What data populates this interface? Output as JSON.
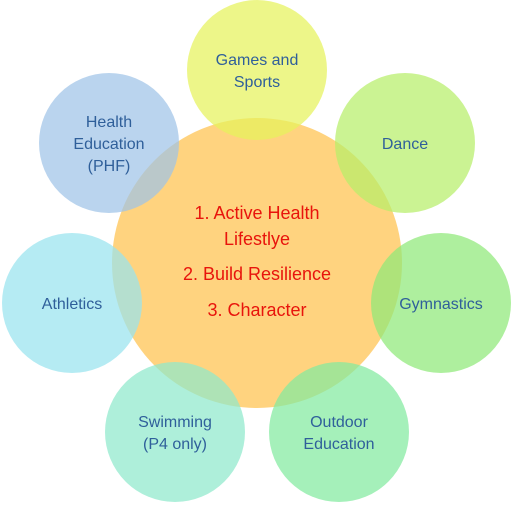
{
  "center": {
    "lines": [
      "1. Active Health",
      "Lifestlye",
      "2. Build Resilience",
      "3. Character"
    ],
    "fill": "#ffc24d",
    "text_color": "#e8140c"
  },
  "outer_label_color": "#2f5f9a",
  "nodes": [
    {
      "id": "games-and-sports",
      "lines": [
        "Games and",
        "Sports"
      ],
      "fill": "#e6f25c"
    },
    {
      "id": "dance",
      "lines": [
        "Dance"
      ],
      "fill": "#b7ee6a"
    },
    {
      "id": "gymnastics",
      "lines": [
        "Gymnastics"
      ],
      "fill": "#8fe979"
    },
    {
      "id": "outdoor-education",
      "lines": [
        "Outdoor",
        "Education"
      ],
      "fill": "#82eaa0"
    },
    {
      "id": "swimming",
      "lines": [
        "Swimming",
        "(P4 only)"
      ],
      "fill": "#8fe9cc"
    },
    {
      "id": "athletics",
      "lines": [
        "Athletics"
      ],
      "fill": "#99e3ef"
    },
    {
      "id": "health-education",
      "lines": [
        "Health",
        "Education",
        "(PHF)"
      ],
      "fill": "#9fc3e8"
    }
  ]
}
